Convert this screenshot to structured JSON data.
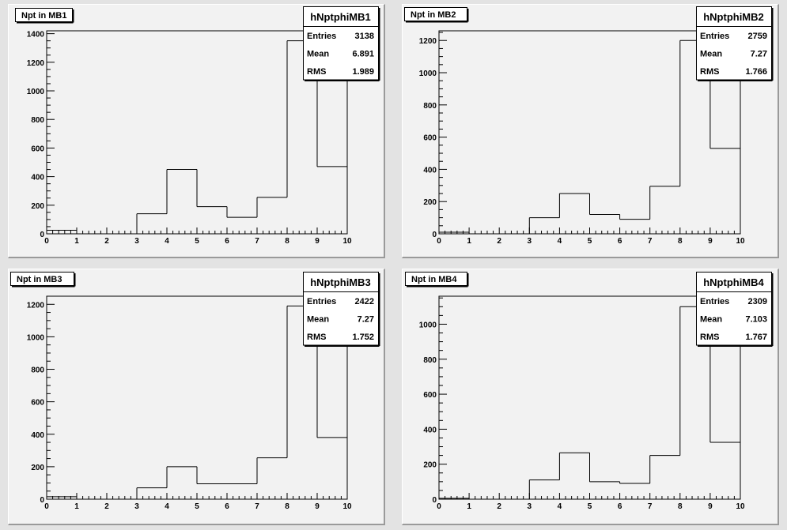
{
  "canvas": {
    "background": "#e3e3e3",
    "pad_color": "#f2f2f2",
    "line_color": "#000000"
  },
  "chart_data": [
    {
      "type": "bar",
      "title": "Npt in MB1",
      "histogram_name": "hNptphiMB1",
      "stats": [
        {
          "label": "Entries",
          "value": "3138"
        },
        {
          "label": "Mean",
          "value": "6.891"
        },
        {
          "label": "RMS",
          "value": "1.989"
        }
      ],
      "bin_edges": [
        0,
        1,
        2,
        3,
        4,
        5,
        6,
        7,
        8,
        9,
        10
      ],
      "values": [
        25,
        0,
        0,
        140,
        450,
        190,
        115,
        255,
        1350,
        470
      ],
      "xlim": [
        0,
        10
      ],
      "ylim": [
        0,
        1420
      ],
      "x_ticks": [
        0,
        1,
        2,
        3,
        4,
        5,
        6,
        7,
        8,
        9,
        10
      ],
      "y_ticks": [
        0,
        200,
        400,
        600,
        800,
        1000,
        1200,
        1400
      ],
      "xlabel": "",
      "ylabel": "",
      "legend": "top-right"
    },
    {
      "type": "bar",
      "title": "Npt in MB2",
      "histogram_name": "hNptphiMB2",
      "stats": [
        {
          "label": "Entries",
          "value": "2759"
        },
        {
          "label": "Mean",
          "value": "7.27"
        },
        {
          "label": "RMS",
          "value": "1.766"
        }
      ],
      "bin_edges": [
        0,
        1,
        2,
        3,
        4,
        5,
        6,
        7,
        8,
        9,
        10
      ],
      "values": [
        10,
        0,
        0,
        100,
        250,
        120,
        90,
        295,
        1200,
        530
      ],
      "xlim": [
        0,
        10
      ],
      "ylim": [
        0,
        1260
      ],
      "x_ticks": [
        0,
        1,
        2,
        3,
        4,
        5,
        6,
        7,
        8,
        9,
        10
      ],
      "y_ticks": [
        0,
        200,
        400,
        600,
        800,
        1000,
        1200
      ],
      "xlabel": "",
      "ylabel": "",
      "legend": "top-right"
    },
    {
      "type": "bar",
      "title": "Npt in MB3",
      "histogram_name": "hNptphiMB3",
      "stats": [
        {
          "label": "Entries",
          "value": "2422"
        },
        {
          "label": "Mean",
          "value": "7.27"
        },
        {
          "label": "RMS",
          "value": "1.752"
        }
      ],
      "bin_edges": [
        0,
        1,
        2,
        3,
        4,
        5,
        6,
        7,
        8,
        9,
        10
      ],
      "values": [
        15,
        0,
        0,
        70,
        200,
        95,
        95,
        255,
        1190,
        380
      ],
      "xlim": [
        0,
        10
      ],
      "ylim": [
        0,
        1250
      ],
      "x_ticks": [
        0,
        1,
        2,
        3,
        4,
        5,
        6,
        7,
        8,
        9,
        10
      ],
      "y_ticks": [
        0,
        200,
        400,
        600,
        800,
        1000,
        1200
      ],
      "xlabel": "",
      "ylabel": "",
      "legend": "top-right"
    },
    {
      "type": "bar",
      "title": "Npt in MB4",
      "histogram_name": "hNptphiMB4",
      "stats": [
        {
          "label": "Entries",
          "value": "2309"
        },
        {
          "label": "Mean",
          "value": "7.103"
        },
        {
          "label": "RMS",
          "value": "1.767"
        }
      ],
      "bin_edges": [
        0,
        1,
        2,
        3,
        4,
        5,
        6,
        7,
        8,
        9,
        10
      ],
      "values": [
        5,
        0,
        0,
        110,
        265,
        100,
        90,
        250,
        1100,
        325
      ],
      "xlim": [
        0,
        10
      ],
      "ylim": [
        0,
        1160
      ],
      "x_ticks": [
        0,
        1,
        2,
        3,
        4,
        5,
        6,
        7,
        8,
        9,
        10
      ],
      "y_ticks": [
        0,
        200,
        400,
        600,
        800,
        1000
      ],
      "xlabel": "",
      "ylabel": "",
      "legend": "top-right"
    }
  ]
}
